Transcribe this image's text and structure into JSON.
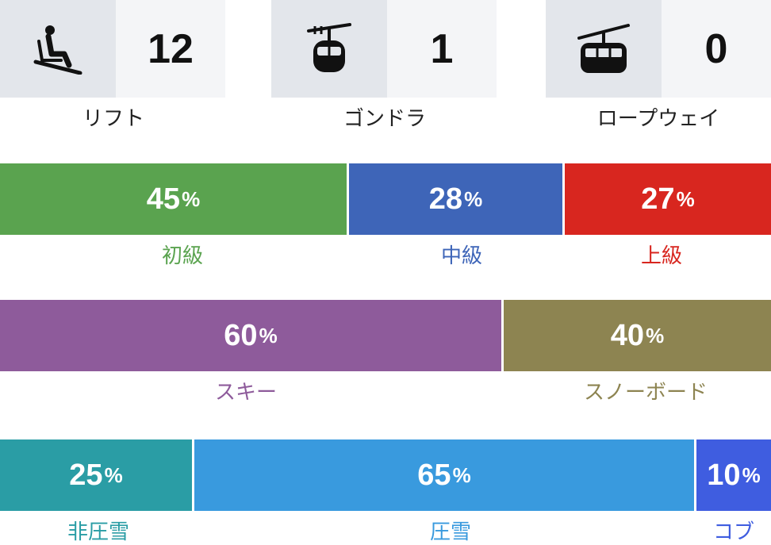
{
  "lifts": [
    {
      "icon": "chairlift-icon",
      "count": "12",
      "label": "リフト"
    },
    {
      "icon": "gondola-icon",
      "count": "1",
      "label": "ゴンドラ"
    },
    {
      "icon": "ropeway-icon",
      "count": "0",
      "label": "ロープウェイ"
    }
  ],
  "difficulty": [
    {
      "value": "45",
      "unit": "%",
      "label": "初級",
      "color": "#5aa34f"
    },
    {
      "value": "28",
      "unit": "%",
      "label": "中級",
      "color": "#3e65b8"
    },
    {
      "value": "27",
      "unit": "%",
      "label": "上級",
      "color": "#d8261f"
    }
  ],
  "style": [
    {
      "value": "60",
      "unit": "%",
      "label": "スキー",
      "color": "#8e5b9b"
    },
    {
      "value": "40",
      "unit": "%",
      "label": "スノーボード",
      "color": "#8d8451"
    }
  ],
  "snow": [
    {
      "value": "25",
      "unit": "%",
      "label": "非圧雪",
      "color": "#2a9da5"
    },
    {
      "value": "65",
      "unit": "%",
      "label": "圧雪",
      "color": "#399ade"
    },
    {
      "value": "10",
      "unit": "%",
      "label": "コブ",
      "color": "#3f5de0"
    }
  ]
}
